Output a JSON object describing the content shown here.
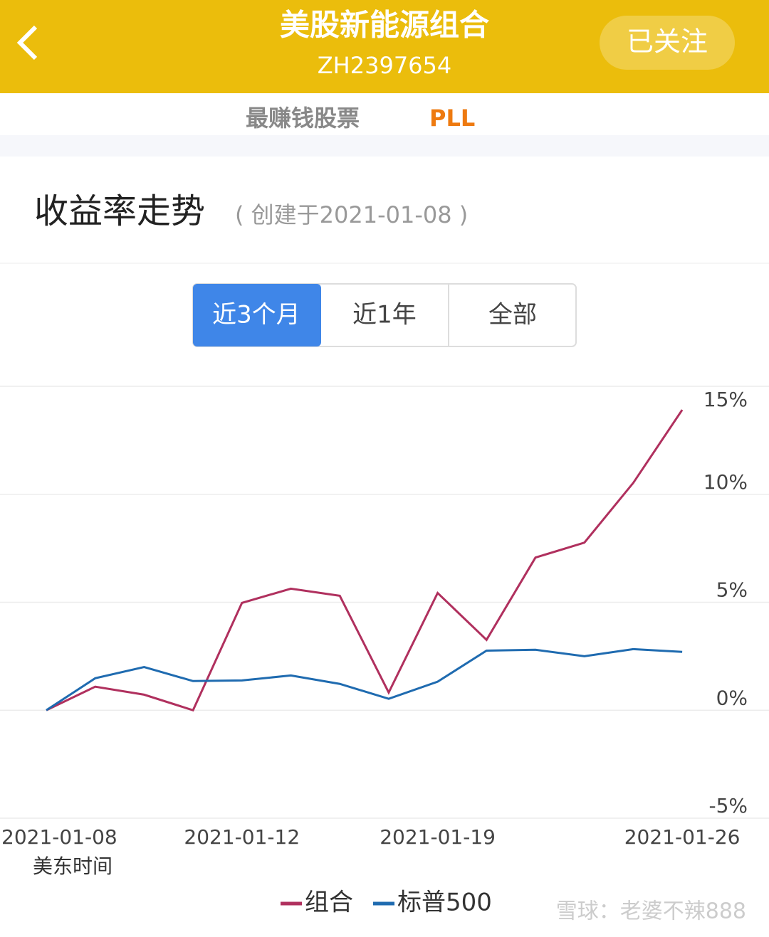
{
  "header": {
    "title": "美股新能源组合",
    "code": "ZH2397654",
    "follow_button": "已关注"
  },
  "banner": {
    "label": "最赚钱股票",
    "stock": "PLL"
  },
  "section": {
    "title": "收益率走势",
    "note": "( 创建于2021-01-08 )"
  },
  "tabs": [
    "近3个月",
    "近1年",
    "全部"
  ],
  "chart_data": {
    "type": "line",
    "categories": [
      "2021-01-08",
      null,
      null,
      null,
      "2021-01-12",
      null,
      null,
      null,
      "2021-01-19",
      null,
      null,
      null,
      null,
      "2021-01-26"
    ],
    "series": [
      {
        "name": "组合",
        "color": "#b0305e",
        "values": [
          0,
          1.09,
          0.72,
          0,
          4.97,
          5.63,
          5.3,
          0.82,
          5.43,
          3.26,
          7.07,
          7.76,
          10.53,
          13.91
        ]
      },
      {
        "name": "标普500",
        "color": "#1f6bb0",
        "values": [
          0,
          1.48,
          2.0,
          1.35,
          1.38,
          1.61,
          1.22,
          0.53,
          1.32,
          2.76,
          2.8,
          2.5,
          2.83,
          2.7
        ]
      }
    ],
    "ylim": [
      -5,
      15
    ],
    "yticks": [
      {
        "value": 15,
        "label": "15%"
      },
      {
        "value": 10,
        "label": "10%"
      },
      {
        "value": 5,
        "label": "5%"
      },
      {
        "value": 0,
        "label": "0%"
      },
      {
        "value": -5,
        "label": "-5%"
      }
    ],
    "grid": true,
    "x_note": "美东时间"
  },
  "watermark": "雪球：老婆不辣888"
}
